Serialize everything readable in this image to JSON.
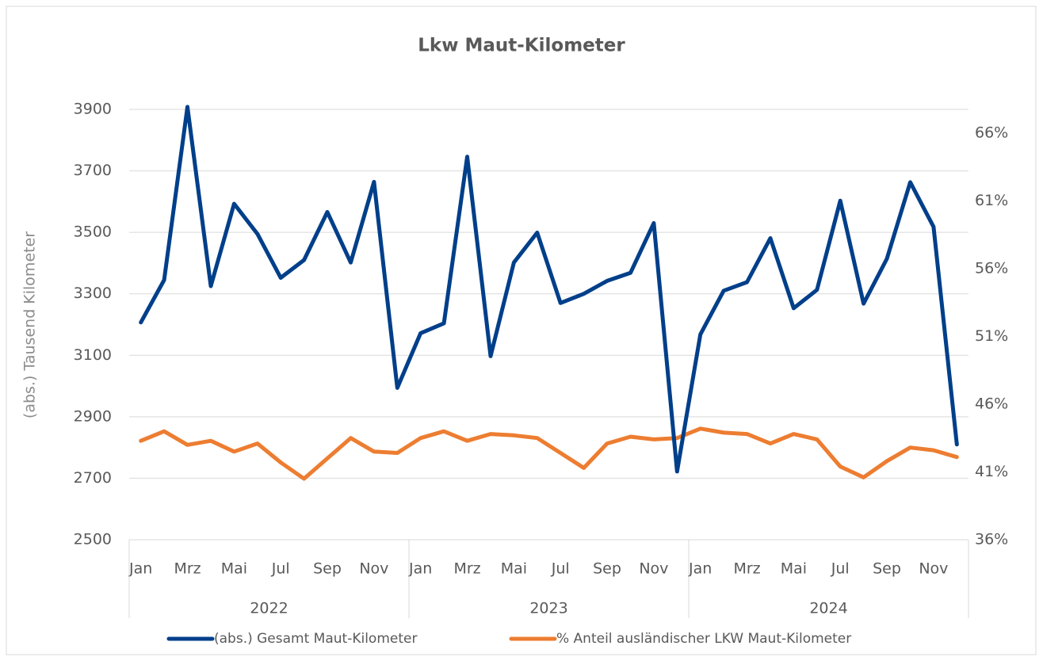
{
  "chart_data": {
    "type": "line",
    "title": "Lkw Maut-Kilometer",
    "ylabel": "(abs.) Tausend Kilometer",
    "categories": [
      "Jan",
      null,
      "Mrz",
      null,
      "Mai",
      null,
      "Jul",
      null,
      "Sep",
      null,
      "Nov",
      null,
      "Jan",
      null,
      "Mrz",
      null,
      "Mai",
      null,
      "Jul",
      null,
      "Sep",
      null,
      "Nov",
      null,
      "Jan",
      null,
      "Mrz",
      null,
      "Mai",
      null,
      "Jul",
      null,
      "Sep",
      null,
      "Nov",
      null
    ],
    "years": [
      "2022",
      "2023",
      "2024"
    ],
    "series": [
      {
        "name": "(abs.) Gesamt Maut-Kilometer",
        "color": "#003f8a",
        "axis": "y",
        "values": [
          3207,
          3345,
          3908,
          3325,
          3593,
          3495,
          3352,
          3410,
          3566,
          3402,
          3664,
          2994,
          3172,
          3204,
          3746,
          3097,
          3402,
          3499,
          3270,
          3300,
          3342,
          3368,
          3530,
          2722,
          3168,
          3310,
          3338,
          3481,
          3253,
          3313,
          3603,
          3268,
          3414,
          3663,
          3518,
          2810
        ]
      },
      {
        "name": "% Anteil ausländischer LKW Maut-Kilometer",
        "color": "#ed7d31",
        "axis": "y2",
        "values": [
          43.3,
          44.0,
          43.0,
          43.3,
          42.5,
          43.1,
          41.7,
          40.5,
          42.0,
          43.5,
          42.5,
          42.4,
          43.5,
          44.0,
          43.3,
          43.8,
          43.7,
          43.5,
          42.4,
          41.3,
          43.1,
          43.6,
          43.4,
          43.5,
          44.2,
          43.9,
          43.8,
          43.1,
          43.8,
          43.4,
          41.4,
          40.6,
          41.8,
          42.8,
          42.6,
          42.1
        ]
      }
    ],
    "ylim": [
      2500,
      3900
    ],
    "yticks": [
      2500,
      2700,
      2900,
      3100,
      3300,
      3500,
      3700,
      3900
    ],
    "y2lim": [
      36,
      67.75
    ],
    "y2ticks": [
      {
        "value": 36,
        "label": "36%"
      },
      {
        "value": 41,
        "label": "41%"
      },
      {
        "value": 46,
        "label": "46%"
      },
      {
        "value": 51,
        "label": "51%"
      },
      {
        "value": 56,
        "label": "56%"
      },
      {
        "value": 61,
        "label": "61%"
      },
      {
        "value": 66,
        "label": "66%"
      }
    ],
    "grid": true,
    "legend": "bottom"
  }
}
